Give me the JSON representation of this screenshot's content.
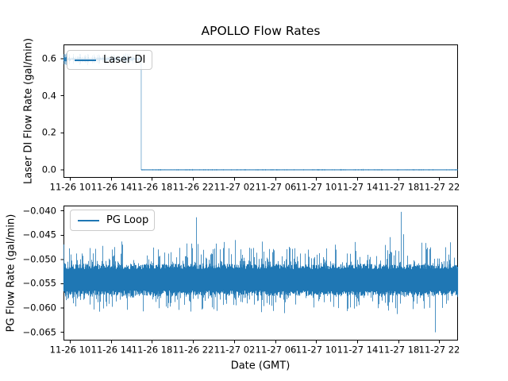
{
  "figure": {
    "title": "APOLLO Flow Rates",
    "background": "#ffffff",
    "line_color": "#1f77b4",
    "spine_color": "#000000"
  },
  "chart_data": [
    {
      "type": "line",
      "title": "APOLLO Flow Rates",
      "ylabel": "Laser DI Flow Rate (gal/min)",
      "xlabel": "",
      "legend": "Laser DI",
      "legend_position": "upper left",
      "grid": false,
      "ylim": [
        -0.043,
        0.677
      ],
      "yticks": [
        0.0,
        0.2,
        0.4,
        0.6
      ],
      "ytick_labels": [
        "0.0",
        "0.2",
        "0.4",
        "0.6"
      ],
      "xtick_labels": [
        "11-26 10",
        "11-26 14",
        "11-26 18",
        "11-26 22",
        "11-27 02",
        "11-27 06",
        "11-27 10",
        "11-27 14",
        "11-27 18",
        "11-27 22"
      ],
      "series": [
        {
          "name": "Laser DI",
          "color": "#1f77b4",
          "description": "flow steady near 0.60 gal/min with noise, instant drop to ~0.00 at about 11-26 17:00, stays at ~0.00 with tiny noise afterwards",
          "drop_x_frac": 0.197,
          "segments": [
            {
              "x_frac_start": 0.0,
              "x_frac_end": 0.197,
              "mean": 0.598,
              "noise_half_typ": 0.012,
              "noise_half_max": 0.032
            },
            {
              "x_frac_start": 0.197,
              "x_frac_end": 1.0,
              "mean": 0.0,
              "noise_half_typ": 0.002,
              "noise_half_max": 0.006
            }
          ]
        }
      ]
    },
    {
      "type": "line",
      "title": "",
      "ylabel": "PG Flow Rate (gal/min)",
      "xlabel": "Date (GMT)",
      "legend": "PG Loop",
      "legend_position": "upper left",
      "grid": false,
      "ylim": [
        -0.0667,
        -0.0389
      ],
      "yticks": [
        -0.04,
        -0.045,
        -0.05,
        -0.055,
        -0.06,
        -0.065
      ],
      "ytick_labels": [
        "−0.040",
        "−0.045",
        "−0.050",
        "−0.055",
        "−0.060",
        "−0.065"
      ],
      "xtick_labels": [
        "11-26 10",
        "11-26 14",
        "11-26 18",
        "11-26 22",
        "11-27 02",
        "11-27 06",
        "11-27 10",
        "11-27 14",
        "11-27 18",
        "11-27 22"
      ],
      "series": [
        {
          "name": "PG Loop",
          "color": "#1f77b4",
          "description": "dense noise around -0.054 gal/min; solid band about -0.0515 to -0.0567; frequent spikes to ~-0.050/-0.048 and dips to ~-0.058/-0.060",
          "mean": -0.0541,
          "core_band": [
            -0.0517,
            -0.0566
          ],
          "typical_spike_range": [
            -0.06,
            -0.048
          ],
          "notable_spikes": [
            {
              "x_frac": 0.336,
              "value": -0.0413
            },
            {
              "x_frac": 0.435,
              "value": -0.046
            },
            {
              "x_frac": 0.829,
              "value": -0.0454
            },
            {
              "x_frac": 0.857,
              "value": -0.0402
            },
            {
              "x_frac": 0.863,
              "value": -0.0448
            },
            {
              "x_frac": 0.919,
              "value": -0.0466
            },
            {
              "x_frac": 0.944,
              "value": -0.065
            }
          ]
        }
      ]
    }
  ]
}
